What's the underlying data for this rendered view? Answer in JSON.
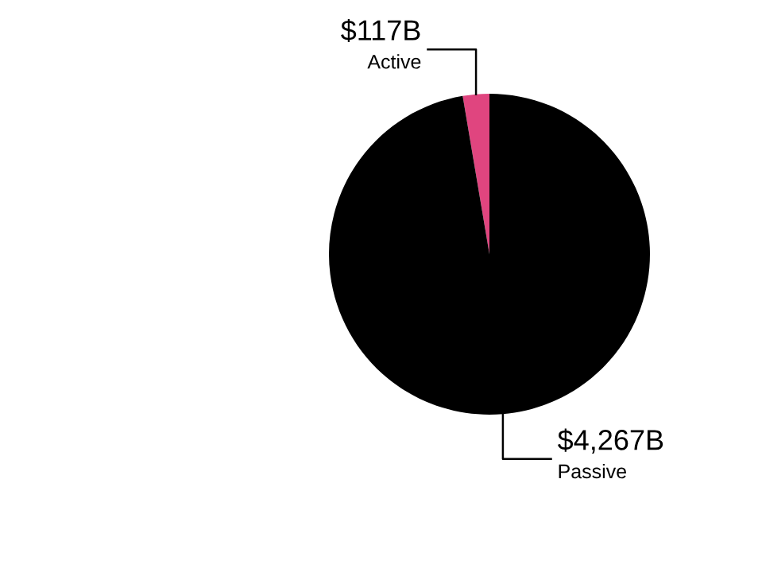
{
  "chart_data": {
    "type": "pie",
    "categories": [
      "Active",
      "Passive"
    ],
    "values": [
      117,
      4267
    ],
    "colors": [
      "#e0457f",
      "#000000"
    ],
    "value_labels": [
      "$117B",
      "$4,267B"
    ],
    "legend": false
  }
}
